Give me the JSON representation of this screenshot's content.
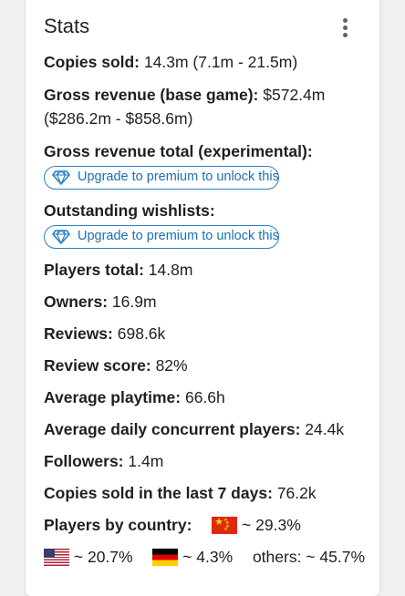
{
  "card": {
    "title": "Stats",
    "menu_icon": "more-vert-icon"
  },
  "stats": {
    "copies_sold": {
      "label": "Copies sold:",
      "value": "14.3m (7.1m - 21.5m)"
    },
    "gross_revenue_base": {
      "label": "Gross revenue (base game):",
      "value_line1": "$572.4m",
      "value_line2": "($286.2m - $858.6m)"
    },
    "gross_revenue_total": {
      "label": "Gross revenue total (experimental):"
    },
    "outstanding_wishlists": {
      "label": "Outstanding wishlists:"
    },
    "players_total": {
      "label": "Players total:",
      "value": "14.8m"
    },
    "owners": {
      "label": "Owners:",
      "value": "16.9m"
    },
    "reviews": {
      "label": "Reviews:",
      "value": "698.6k"
    },
    "review_score": {
      "label": "Review score:",
      "value": "82%"
    },
    "average_playtime": {
      "label": "Average playtime:",
      "value": "66.6h"
    },
    "avg_daily_concurrent": {
      "label": "Average daily concurrent players:",
      "value": "24.4k"
    },
    "followers": {
      "label": "Followers:",
      "value": "1.4m"
    },
    "copies_last_7_days": {
      "label": "Copies sold in the last 7 days:",
      "value": "76.2k"
    },
    "players_by_country": {
      "label": "Players by country:",
      "countries": [
        {
          "flag": "china-flag-icon",
          "value": "~ 29.3%"
        },
        {
          "flag": "usa-flag-icon",
          "value": "~ 20.7%"
        },
        {
          "flag": "germany-flag-icon",
          "value": "~ 4.3%"
        }
      ],
      "others": "others: ~ 45.7%"
    }
  },
  "premium": {
    "text": "Upgrade to premium to unlock this",
    "icon": "diamond-icon",
    "color": "#1b6fb3"
  }
}
